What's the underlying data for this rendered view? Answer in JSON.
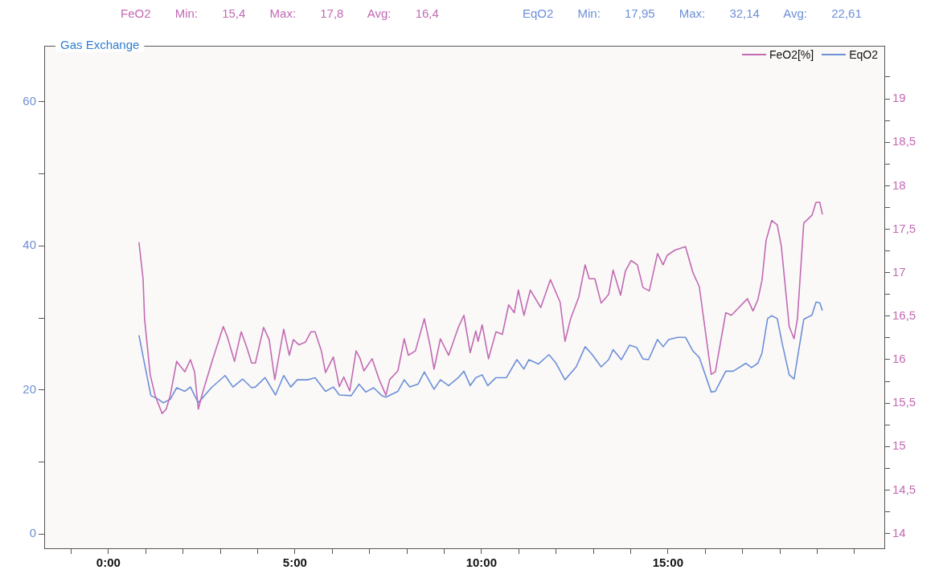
{
  "chart_data": {
    "type": "line",
    "title": "Gas Exchange",
    "annotations": [
      "FeO2 Min: 15,4 Max: 17,8 Avg: 16,4",
      "EqO2 Min: 17,95 Max: 32,14 Avg: 22,61"
    ],
    "legend": "top right",
    "xlim": [
      -1.72,
      20.8
    ],
    "xticks": [
      {
        "value": -1,
        "label": null
      },
      {
        "value": 0,
        "label": "0:00"
      },
      {
        "value": 1,
        "label": null
      },
      {
        "value": 2,
        "label": null
      },
      {
        "value": 3,
        "label": null
      },
      {
        "value": 4,
        "label": null
      },
      {
        "value": 5,
        "label": "5:00"
      },
      {
        "value": 6,
        "label": null
      },
      {
        "value": 7,
        "label": null
      },
      {
        "value": 8,
        "label": null
      },
      {
        "value": 9,
        "label": null
      },
      {
        "value": 10,
        "label": "10:00"
      },
      {
        "value": 11,
        "label": null
      },
      {
        "value": 12,
        "label": null
      },
      {
        "value": 13,
        "label": null
      },
      {
        "value": 14,
        "label": null
      },
      {
        "value": 15,
        "label": "15:00"
      },
      {
        "value": 16,
        "label": null
      },
      {
        "value": 17,
        "label": null
      },
      {
        "value": 18,
        "label": null
      },
      {
        "value": 19,
        "label": null
      },
      {
        "value": 20,
        "label": null
      }
    ],
    "ylim": [
      -2,
      67.8
    ],
    "yticks": [
      0,
      {
        "value": 10,
        "label": null
      },
      20,
      {
        "value": 30,
        "label": null
      },
      40,
      {
        "value": 50,
        "label": null
      },
      60
    ],
    "y2lim": [
      13.83,
      19.61
    ],
    "y2ticks": [
      {
        "value": 14,
        "label": "14"
      },
      {
        "value": 14.25,
        "label": null
      },
      {
        "value": 14.5,
        "label": "14,5"
      },
      {
        "value": 14.75,
        "label": null
      },
      {
        "value": 15,
        "label": "15"
      },
      {
        "value": 15.25,
        "label": null
      },
      {
        "value": 15.5,
        "label": "15,5"
      },
      {
        "value": 15.75,
        "label": null
      },
      {
        "value": 16,
        "label": "16"
      },
      {
        "value": 16.25,
        "label": null
      },
      {
        "value": 16.5,
        "label": "16,5"
      },
      {
        "value": 16.75,
        "label": null
      },
      {
        "value": 17,
        "label": "17"
      },
      {
        "value": 17.25,
        "label": null
      },
      {
        "value": 17.5,
        "label": "17,5"
      },
      {
        "value": 17.75,
        "label": null
      },
      {
        "value": 18,
        "label": "18"
      },
      {
        "value": 18.25,
        "label": null
      },
      {
        "value": 18.5,
        "label": "18,5"
      },
      {
        "value": 18.75,
        "label": null
      },
      {
        "value": 19,
        "label": "19"
      },
      {
        "value": 19.25,
        "label": null
      }
    ],
    "line_style": "solid",
    "series": [
      {
        "name": "FeO2[%]",
        "color": "#c26ab4",
        "axis": "y2",
        "x": [
          0.82,
          0.93,
          0.97,
          1.12,
          1.25,
          1.44,
          1.55,
          1.66,
          1.83,
          2.05,
          2.2,
          2.31,
          2.41,
          2.54,
          2.8,
          3.08,
          3.19,
          3.38,
          3.56,
          3.71,
          3.84,
          3.94,
          4.16,
          4.31,
          4.46,
          4.7,
          4.85,
          4.96,
          5.11,
          5.28,
          5.43,
          5.54,
          5.71,
          5.82,
          6.03,
          6.19,
          6.31,
          6.47,
          6.64,
          6.75,
          6.85,
          7.07,
          7.26,
          7.44,
          7.54,
          7.76,
          7.93,
          8.04,
          8.23,
          8.47,
          8.62,
          8.73,
          8.9,
          9.12,
          9.38,
          9.53,
          9.7,
          9.85,
          9.91,
          10.02,
          10.19,
          10.39,
          10.56,
          10.73,
          10.88,
          10.99,
          11.14,
          11.31,
          11.59,
          11.85,
          12.11,
          12.24,
          12.39,
          12.61,
          12.78,
          12.89,
          13.04,
          13.21,
          13.41,
          13.53,
          13.73,
          13.86,
          14.01,
          14.18,
          14.33,
          14.5,
          14.72,
          14.87,
          14.98,
          15.19,
          15.47,
          15.67,
          15.84,
          16.16,
          16.27,
          16.55,
          16.7,
          17.13,
          17.28,
          17.41,
          17.52,
          17.63,
          17.78,
          17.93,
          18.04,
          18.25,
          18.38,
          18.47,
          18.64,
          18.86,
          18.97,
          19.07,
          19.14
        ],
        "values": [
          17.35,
          16.93,
          16.47,
          15.83,
          15.59,
          15.38,
          15.43,
          15.59,
          15.98,
          15.86,
          16.0,
          15.86,
          15.43,
          15.64,
          16.01,
          16.38,
          16.26,
          15.98,
          16.32,
          16.14,
          15.96,
          15.96,
          16.37,
          16.23,
          15.77,
          16.35,
          16.05,
          16.23,
          16.17,
          16.2,
          16.32,
          16.32,
          16.1,
          15.85,
          16.03,
          15.69,
          15.8,
          15.64,
          16.1,
          16.01,
          15.87,
          16.01,
          15.77,
          15.59,
          15.77,
          15.87,
          16.24,
          16.05,
          16.1,
          16.47,
          16.17,
          15.89,
          16.24,
          16.05,
          16.37,
          16.51,
          16.08,
          16.33,
          16.21,
          16.4,
          16.01,
          16.32,
          16.29,
          16.63,
          16.54,
          16.8,
          16.51,
          16.8,
          16.6,
          16.92,
          16.66,
          16.21,
          16.47,
          16.72,
          17.09,
          16.93,
          16.93,
          16.65,
          16.75,
          17.03,
          16.74,
          17.02,
          17.14,
          17.09,
          16.83,
          16.79,
          17.22,
          17.09,
          17.2,
          17.26,
          17.3,
          17.0,
          16.84,
          15.83,
          15.86,
          16.54,
          16.51,
          16.7,
          16.56,
          16.69,
          16.91,
          17.37,
          17.6,
          17.55,
          17.3,
          16.38,
          16.24,
          16.47,
          17.57,
          17.66,
          17.81,
          17.81,
          17.67
        ]
      },
      {
        "name": "EqO2",
        "color": "#6d8fd8",
        "x": [
          0.82,
          0.97,
          1.14,
          1.34,
          1.47,
          1.66,
          1.83,
          2.05,
          2.2,
          2.41,
          2.76,
          3.13,
          3.34,
          3.6,
          3.84,
          3.94,
          4.2,
          4.48,
          4.7,
          4.89,
          5.06,
          5.34,
          5.54,
          5.82,
          6.03,
          6.19,
          6.51,
          6.72,
          6.9,
          7.11,
          7.33,
          7.44,
          7.76,
          7.93,
          8.08,
          8.3,
          8.47,
          8.73,
          8.9,
          9.12,
          9.38,
          9.53,
          9.7,
          9.85,
          10.02,
          10.17,
          10.39,
          10.67,
          10.95,
          11.14,
          11.27,
          11.53,
          11.81,
          12.0,
          12.24,
          12.54,
          12.78,
          12.97,
          13.21,
          13.41,
          13.53,
          13.75,
          13.97,
          14.16,
          14.33,
          14.48,
          14.72,
          14.87,
          15.02,
          15.26,
          15.47,
          15.67,
          15.84,
          16.16,
          16.27,
          16.55,
          16.75,
          17.09,
          17.24,
          17.41,
          17.52,
          17.67,
          17.78,
          17.93,
          18.06,
          18.25,
          18.38,
          18.64,
          18.86,
          18.97,
          19.07,
          19.14
        ],
        "values": [
          27.6,
          23.6,
          19.2,
          18.7,
          18.2,
          18.7,
          20.3,
          19.8,
          20.4,
          18.2,
          20.3,
          22.0,
          20.4,
          21.5,
          20.3,
          20.4,
          21.7,
          19.3,
          22.0,
          20.4,
          21.4,
          21.4,
          21.7,
          19.8,
          20.4,
          19.3,
          19.2,
          20.8,
          19.7,
          20.3,
          19.2,
          19.0,
          19.8,
          21.4,
          20.4,
          20.8,
          22.5,
          20.1,
          21.4,
          20.6,
          21.7,
          22.6,
          20.6,
          21.7,
          22.1,
          20.6,
          21.7,
          21.7,
          24.2,
          22.9,
          24.2,
          23.6,
          24.9,
          23.7,
          21.4,
          23.2,
          26.0,
          24.9,
          23.2,
          24.2,
          25.6,
          24.2,
          26.2,
          25.9,
          24.3,
          24.2,
          27.0,
          26.0,
          27.0,
          27.3,
          27.3,
          25.4,
          24.5,
          19.7,
          19.8,
          22.6,
          22.6,
          23.7,
          23.1,
          23.7,
          25.1,
          29.9,
          30.3,
          29.9,
          26.5,
          22.1,
          21.5,
          29.8,
          30.4,
          32.2,
          32.1,
          31.0
        ]
      }
    ]
  }
}
